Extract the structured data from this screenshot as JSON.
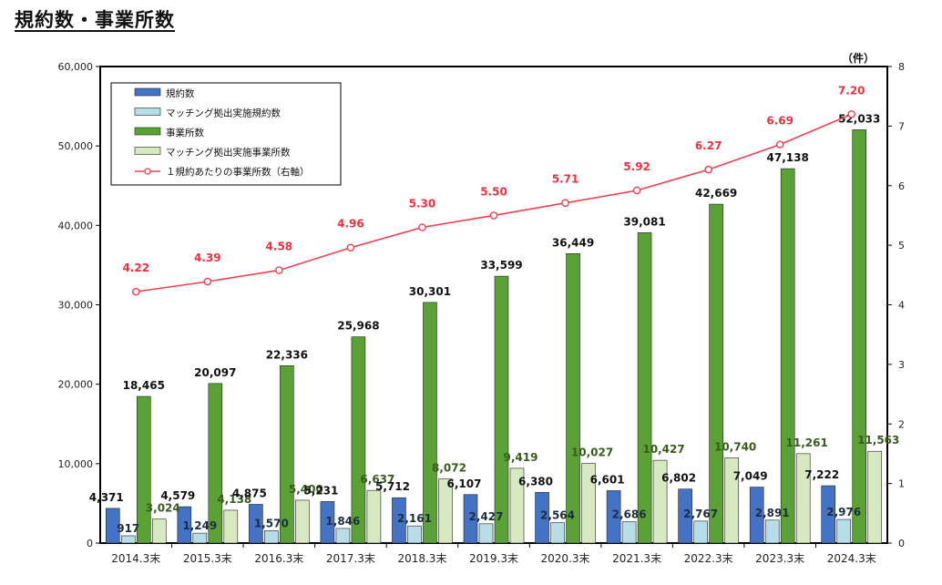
{
  "title": "規約数・事業所数",
  "chart_data": {
    "type": "bar",
    "categories": [
      "2014.3末",
      "2015.3末",
      "2016.3末",
      "2017.3末",
      "2018.3末",
      "2019.3末",
      "2020.3末",
      "2021.3末",
      "2022.3末",
      "2023.3末",
      "2024.3末"
    ],
    "ylim": [
      0,
      60000
    ],
    "y2lim": [
      0,
      8
    ],
    "y_ticks": [
      "0",
      "10,000",
      "20,000",
      "30,000",
      "40,000",
      "50,000",
      "60,000"
    ],
    "y2_ticks": [
      "0",
      "1",
      "2",
      "3",
      "4",
      "5",
      "6",
      "7",
      "8"
    ],
    "y2_unit": "（件）",
    "legend_position": "top-left",
    "series": [
      {
        "name": "規約数",
        "type": "bar",
        "axis": "left",
        "color": "#4472c4",
        "values": [
          4371,
          4579,
          4875,
          5231,
          5712,
          6107,
          6380,
          6601,
          6802,
          7049,
          7222
        ],
        "labels": [
          "4,371",
          "4,579",
          "4,875",
          "5,231",
          "5,712",
          "6,107",
          "6,380",
          "6,601",
          "6,802",
          "7,049",
          "7,222"
        ]
      },
      {
        "name": "マッチング拠出実施規約数",
        "type": "bar",
        "axis": "left",
        "color": "#b7dde8",
        "values": [
          917,
          1249,
          1570,
          1846,
          2161,
          2427,
          2564,
          2686,
          2767,
          2891,
          2976
        ],
        "labels": [
          "917",
          "1,249",
          "1,570",
          "1,846",
          "2,161",
          "2,427",
          "2,564",
          "2,686",
          "2,767",
          "2,891",
          "2,976"
        ]
      },
      {
        "name": "事業所数",
        "type": "bar",
        "axis": "left",
        "color": "#5ba236",
        "values": [
          18465,
          20097,
          22336,
          25968,
          30301,
          33599,
          36449,
          39081,
          42669,
          47138,
          52033
        ],
        "labels": [
          "18,465",
          "20,097",
          "22,336",
          "25,968",
          "30,301",
          "33,599",
          "36,449",
          "39,081",
          "42,669",
          "47,138",
          "52,033"
        ]
      },
      {
        "name": "マッチング拠出実施事業所数",
        "type": "bar",
        "axis": "left",
        "color": "#d7e9c1",
        "values": [
          3024,
          4138,
          5400,
          6637,
          8072,
          9419,
          10027,
          10427,
          10740,
          11261,
          11563
        ],
        "labels": [
          "3,024",
          "4,138",
          "5,400",
          "6,637",
          "8,072",
          "9,419",
          "10,027",
          "10,427",
          "10,740",
          "11,261",
          "11,563"
        ]
      },
      {
        "name": "１規約あたりの事業所数（右軸）",
        "type": "line",
        "axis": "right",
        "color": "#f04050",
        "values": [
          4.22,
          4.39,
          4.58,
          4.96,
          5.3,
          5.5,
          5.71,
          5.92,
          6.27,
          6.69,
          7.2
        ],
        "labels": [
          "4.22",
          "4.39",
          "4.58",
          "4.96",
          "5.30",
          "5.50",
          "5.71",
          "5.92",
          "6.27",
          "6.69",
          "7.20"
        ]
      }
    ]
  }
}
